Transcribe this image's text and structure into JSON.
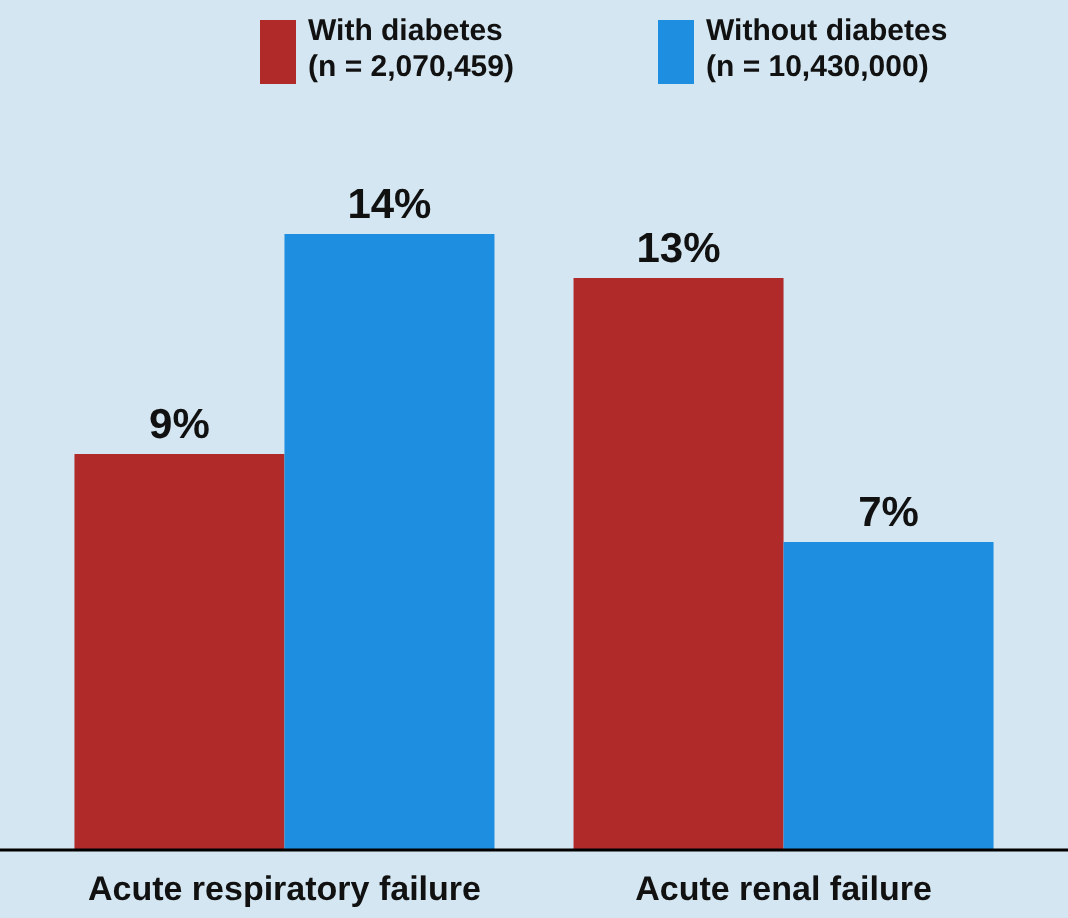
{
  "chart_data": {
    "type": "bar",
    "categories": [
      "Acute respiratory failure",
      "Acute renal failure"
    ],
    "series": [
      {
        "name": "With diabetes\n(n = 2,070,459)",
        "color": "#b02a2a",
        "values": [
          9,
          13
        ],
        "value_labels": [
          "9%",
          "13%"
        ]
      },
      {
        "name": "Without diabetes\n(n = 10,430,000)",
        "color": "#1e8fe0",
        "values": [
          14,
          7
        ],
        "value_labels": [
          "14%",
          "7%"
        ]
      }
    ],
    "legend": "top"
  }
}
